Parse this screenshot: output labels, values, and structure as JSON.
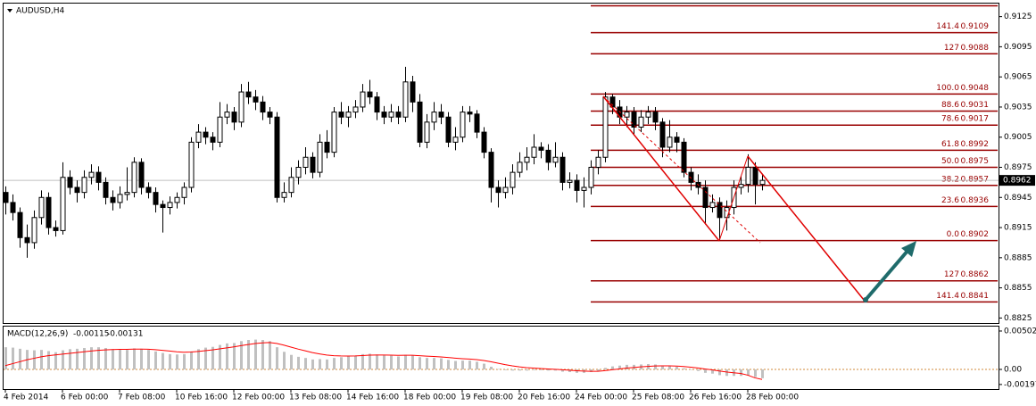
{
  "chart_data": [
    {
      "type": "candlestick",
      "title": "AUDUSD,H4",
      "categories": [
        "4 Feb 2014",
        null,
        null,
        null,
        null,
        null,
        null,
        null,
        "6 Feb 00:00",
        null,
        null,
        null,
        null,
        null,
        null,
        null,
        "7 Feb 08:00",
        null,
        null,
        null,
        null,
        null,
        null,
        null,
        "10 Feb 16:00",
        null,
        null,
        null,
        null,
        null,
        null,
        null,
        "12 Feb 00:00",
        null,
        null,
        null,
        null,
        null,
        null,
        null,
        "13 Feb 08:00",
        null,
        null,
        null,
        null,
        null,
        null,
        null,
        "14 Feb 16:00",
        null,
        null,
        null,
        null,
        null,
        null,
        null,
        "18 Feb 00:00",
        null,
        null,
        null,
        null,
        null,
        null,
        null,
        "19 Feb 08:00",
        null,
        null,
        null,
        null,
        null,
        null,
        null,
        "20 Feb 16:00",
        null,
        null,
        null,
        null,
        null,
        null,
        null,
        "24 Feb 00:00",
        null,
        null,
        null,
        null,
        null,
        null,
        null,
        "25 Feb 08:00",
        null,
        null,
        null,
        null,
        null,
        null,
        null,
        "26 Feb 16:00",
        null,
        null,
        null,
        null,
        null,
        null,
        null,
        "28 Feb 00:00",
        null,
        null
      ],
      "candles": [
        [
          0.895,
          0.8956,
          0.8928,
          0.894
        ],
        [
          0.894,
          0.8948,
          0.8922,
          0.893
        ],
        [
          0.893,
          0.8935,
          0.8895,
          0.8905
        ],
        [
          0.8905,
          0.8918,
          0.8885,
          0.89
        ],
        [
          0.89,
          0.8932,
          0.8894,
          0.8925
        ],
        [
          0.8925,
          0.8952,
          0.8918,
          0.8945
        ],
        [
          0.8945,
          0.895,
          0.8908,
          0.8915
        ],
        [
          0.8915,
          0.8922,
          0.8906,
          0.8912
        ],
        [
          0.8912,
          0.898,
          0.8908,
          0.8965
        ],
        [
          0.8965,
          0.8972,
          0.8948,
          0.8955
        ],
        [
          0.8955,
          0.8962,
          0.894,
          0.895
        ],
        [
          0.895,
          0.8972,
          0.8944,
          0.8965
        ],
        [
          0.8965,
          0.8978,
          0.8958,
          0.897
        ],
        [
          0.897,
          0.8976,
          0.8952,
          0.896
        ],
        [
          0.896,
          0.8965,
          0.8938,
          0.8945
        ],
        [
          0.8945,
          0.8952,
          0.8932,
          0.894
        ],
        [
          0.894,
          0.8956,
          0.8934,
          0.8948
        ],
        [
          0.8948,
          0.8975,
          0.8942,
          0.895
        ],
        [
          0.895,
          0.8985,
          0.8945,
          0.898
        ],
        [
          0.898,
          0.8984,
          0.8948,
          0.8955
        ],
        [
          0.8955,
          0.896,
          0.8944,
          0.895
        ],
        [
          0.895,
          0.8955,
          0.893,
          0.8938
        ],
        [
          0.8938,
          0.8942,
          0.891,
          0.8935
        ],
        [
          0.8935,
          0.8946,
          0.8928,
          0.894
        ],
        [
          0.894,
          0.895,
          0.8934,
          0.8945
        ],
        [
          0.8945,
          0.896,
          0.8938,
          0.8955
        ],
        [
          0.8955,
          0.9005,
          0.895,
          0.9
        ],
        [
          0.9,
          0.9018,
          0.8994,
          0.901
        ],
        [
          0.901,
          0.9015,
          0.8998,
          0.9005
        ],
        [
          0.9005,
          0.901,
          0.8992,
          0.9
        ],
        [
          0.9,
          0.904,
          0.8995,
          0.9025
        ],
        [
          0.9025,
          0.9038,
          0.9018,
          0.903
        ],
        [
          0.903,
          0.9035,
          0.9012,
          0.902
        ],
        [
          0.902,
          0.9058,
          0.9015,
          0.905
        ],
        [
          0.905,
          0.906,
          0.9038,
          0.9045
        ],
        [
          0.9045,
          0.9052,
          0.9032,
          0.904
        ],
        [
          0.904,
          0.9046,
          0.9022,
          0.903
        ],
        [
          0.903,
          0.9035,
          0.9018,
          0.9025
        ],
        [
          0.9025,
          0.903,
          0.894,
          0.8945
        ],
        [
          0.8945,
          0.896,
          0.894,
          0.895
        ],
        [
          0.895,
          0.8975,
          0.8945,
          0.8965
        ],
        [
          0.8965,
          0.8982,
          0.8958,
          0.8975
        ],
        [
          0.8975,
          0.8995,
          0.8968,
          0.8985
        ],
        [
          0.8985,
          0.899,
          0.8964,
          0.897
        ],
        [
          0.897,
          0.9008,
          0.8965,
          0.9
        ],
        [
          0.9,
          0.9012,
          0.8984,
          0.899
        ],
        [
          0.899,
          0.9035,
          0.8985,
          0.903
        ],
        [
          0.903,
          0.904,
          0.9018,
          0.9025
        ],
        [
          0.9025,
          0.9036,
          0.9015,
          0.903
        ],
        [
          0.903,
          0.9042,
          0.9024,
          0.9035
        ],
        [
          0.9035,
          0.9058,
          0.903,
          0.905
        ],
        [
          0.905,
          0.9062,
          0.9038,
          0.9045
        ],
        [
          0.9045,
          0.905,
          0.9022,
          0.903
        ],
        [
          0.903,
          0.9036,
          0.9018,
          0.9025
        ],
        [
          0.9025,
          0.9038,
          0.902,
          0.903
        ],
        [
          0.903,
          0.9036,
          0.9018,
          0.9025
        ],
        [
          0.9025,
          0.9075,
          0.902,
          0.906
        ],
        [
          0.906,
          0.9066,
          0.903,
          0.904
        ],
        [
          0.904,
          0.9048,
          0.8995,
          0.9
        ],
        [
          0.9,
          0.9028,
          0.8994,
          0.902
        ],
        [
          0.902,
          0.904,
          0.9012,
          0.903
        ],
        [
          0.903,
          0.9038,
          0.9018,
          0.9025
        ],
        [
          0.9025,
          0.903,
          0.8995,
          0.9
        ],
        [
          0.9,
          0.9015,
          0.8992,
          0.9005
        ],
        [
          0.9005,
          0.9036,
          0.9,
          0.903
        ],
        [
          0.903,
          0.9036,
          0.902,
          0.9028
        ],
        [
          0.9028,
          0.9032,
          0.9004,
          0.901
        ],
        [
          0.901,
          0.9015,
          0.8984,
          0.899
        ],
        [
          0.899,
          0.8994,
          0.894,
          0.8955
        ],
        [
          0.8955,
          0.8962,
          0.8935,
          0.895
        ],
        [
          0.895,
          0.8965,
          0.8944,
          0.8955
        ],
        [
          0.8955,
          0.8978,
          0.8948,
          0.897
        ],
        [
          0.897,
          0.899,
          0.8965,
          0.898
        ],
        [
          0.898,
          0.8995,
          0.8972,
          0.8985
        ],
        [
          0.8985,
          0.9008,
          0.8978,
          0.8995
        ],
        [
          0.8995,
          0.9,
          0.8984,
          0.8992
        ],
        [
          0.8992,
          0.8998,
          0.8972,
          0.898
        ],
        [
          0.898,
          0.9,
          0.8975,
          0.8985
        ],
        [
          0.8985,
          0.899,
          0.8952,
          0.896
        ],
        [
          0.896,
          0.897,
          0.8954,
          0.8962
        ],
        [
          0.8962,
          0.8968,
          0.894,
          0.8952
        ],
        [
          0.8952,
          0.8965,
          0.8935,
          0.8955
        ],
        [
          0.8955,
          0.8982,
          0.8948,
          0.8975
        ],
        [
          0.8975,
          0.8992,
          0.8968,
          0.8985
        ],
        [
          0.8985,
          0.905,
          0.898,
          0.9045
        ],
        [
          0.9045,
          0.9048,
          0.9028,
          0.9035
        ],
        [
          0.9035,
          0.9042,
          0.9018,
          0.9025
        ],
        [
          0.9025,
          0.9036,
          0.9015,
          0.903
        ],
        [
          0.903,
          0.9035,
          0.9008,
          0.9015
        ],
        [
          0.9015,
          0.9032,
          0.901,
          0.9025
        ],
        [
          0.9025,
          0.9036,
          0.9018,
          0.903
        ],
        [
          0.903,
          0.9035,
          0.9012,
          0.902
        ],
        [
          0.902,
          0.9024,
          0.8985,
          0.8995
        ],
        [
          0.8995,
          0.9022,
          0.899,
          0.9005
        ],
        [
          0.9005,
          0.901,
          0.899,
          0.9
        ],
        [
          0.9,
          0.9004,
          0.8965,
          0.897
        ],
        [
          0.897,
          0.8975,
          0.8952,
          0.896
        ],
        [
          0.896,
          0.8968,
          0.8948,
          0.8955
        ],
        [
          0.8955,
          0.8962,
          0.8918,
          0.8935
        ],
        [
          0.8935,
          0.8948,
          0.893,
          0.894
        ],
        [
          0.894,
          0.8945,
          0.8902,
          0.8925
        ],
        [
          0.8925,
          0.8942,
          0.8912,
          0.8935
        ],
        [
          0.8935,
          0.8962,
          0.8928,
          0.8955
        ],
        [
          0.8955,
          0.8966,
          0.8948,
          0.8958
        ],
        [
          0.8958,
          0.8988,
          0.895,
          0.8975
        ],
        [
          0.8975,
          0.898,
          0.8938,
          0.8958
        ],
        [
          0.8958,
          0.8968,
          0.8952,
          0.8962
        ]
      ],
      "up_color": "#ffffff",
      "down_color": "#000000",
      "ylim": [
        0.882,
        0.9138
      ],
      "yticks": [
        0.9125,
        0.9095,
        0.9065,
        0.9035,
        0.9005,
        0.8975,
        0.8945,
        0.8915,
        0.8885,
        0.8855,
        0.8825
      ],
      "current_price": 0.8962,
      "fib_color": "#990000",
      "fib_levels": [
        {
          "ratio": "141.4",
          "price": 0.9109
        },
        {
          "ratio": "127",
          "price": 0.9088
        },
        {
          "ratio": "100.0",
          "price": 0.9048
        },
        {
          "ratio": "88.6",
          "price": 0.9031
        },
        {
          "ratio": "78.6",
          "price": 0.9017
        },
        {
          "ratio": "61.8",
          "price": 0.8992
        },
        {
          "ratio": "50.0",
          "price": 0.8975
        },
        {
          "ratio": "38.2",
          "price": 0.8957
        },
        {
          "ratio": "23.6",
          "price": 0.8936
        },
        {
          "ratio": "0.0",
          "price": 0.8902
        },
        {
          "ratio": "127",
          "price": 0.8862
        },
        {
          "ratio": "141.4",
          "price": 0.8841
        }
      ]
    },
    {
      "type": "macd",
      "title": "MACD(12,26,9)",
      "histogram": {
        "color": "#c0c0c0",
        "values": [
          0.0029,
          0.00285,
          0.0027,
          0.00255,
          0.0025,
          0.00255,
          0.0024,
          0.00225,
          0.0025,
          0.00265,
          0.0027,
          0.0028,
          0.0029,
          0.0029,
          0.0028,
          0.00265,
          0.0026,
          0.00255,
          0.00275,
          0.0027,
          0.00255,
          0.00235,
          0.00215,
          0.002,
          0.00195,
          0.002,
          0.00235,
          0.00265,
          0.00285,
          0.00295,
          0.0032,
          0.0034,
          0.00345,
          0.0037,
          0.00385,
          0.0039,
          0.00385,
          0.0037,
          0.0029,
          0.0023,
          0.0019,
          0.00165,
          0.0015,
          0.0013,
          0.00135,
          0.0013,
          0.0015,
          0.0016,
          0.0017,
          0.0018,
          0.002,
          0.00205,
          0.00195,
          0.00185,
          0.0018,
          0.0017,
          0.0019,
          0.00185,
          0.0016,
          0.0015,
          0.0015,
          0.00145,
          0.00125,
          0.0011,
          0.00115,
          0.00115,
          0.001,
          0.00075,
          0.00035,
          5e-05,
          -0.0001,
          -0.00015,
          -0.00015,
          -0.00015,
          -0.0001,
          -0.0001,
          -0.00015,
          -0.00015,
          -0.0003,
          -0.00035,
          -0.00045,
          -0.00045,
          -0.00035,
          -0.00025,
          0.0002,
          0.0004,
          0.0005,
          0.0006,
          0.0006,
          0.00065,
          0.0007,
          0.00065,
          0.0005,
          0.00045,
          0.00035,
          0.00015,
          -5e-05,
          -0.0002,
          -0.00045,
          -0.00055,
          -0.00075,
          -0.00085,
          -0.00085,
          -0.00085,
          -0.0008,
          -0.001,
          -0.00115
        ]
      },
      "signal": {
        "color": "#ff0000",
        "values": [
          0.0005,
          0.00075,
          0.001,
          0.00125,
          0.00145,
          0.00165,
          0.0018,
          0.0019,
          0.002,
          0.0021,
          0.0022,
          0.0023,
          0.0024,
          0.0025,
          0.00255,
          0.0026,
          0.00262,
          0.00262,
          0.00265,
          0.00266,
          0.00264,
          0.00258,
          0.0025,
          0.0024,
          0.00231,
          0.00225,
          0.00227,
          0.00235,
          0.00245,
          0.00255,
          0.00268,
          0.00282,
          0.00295,
          0.0031,
          0.00325,
          0.00338,
          0.00347,
          0.00352,
          0.0034,
          0.00318,
          0.00292,
          0.00266,
          0.00243,
          0.0022,
          0.00203,
          0.00188,
          0.0018,
          0.00176,
          0.00175,
          0.00176,
          0.00181,
          0.00186,
          0.00188,
          0.00188,
          0.00187,
          0.00184,
          0.00185,
          0.00185,
          0.0018,
          0.00174,
          0.00169,
          0.00164,
          0.00156,
          0.00147,
          0.0014,
          0.00135,
          0.00128,
          0.00117,
          0.00101,
          0.00082,
          0.00063,
          0.00047,
          0.00034,
          0.00024,
          0.00017,
          0.00011,
          6e-05,
          2e-05,
          -4e-05,
          -0.0001,
          -0.00017,
          -0.00022,
          -0.00025,
          -0.00025,
          -0.00016,
          -5e-05,
          6e-05,
          0.00017,
          0.00025,
          0.00033,
          0.0004,
          0.00045,
          0.00046,
          0.00046,
          0.00044,
          0.00038,
          0.00029,
          0.00019,
          6e-05,
          -6e-05,
          -0.0002,
          -0.00033,
          -0.00044,
          -0.00052,
          -0.00075,
          -0.0011,
          -0.00131
        ]
      },
      "ylim": [
        -0.00245,
        0.0056
      ],
      "yticks": [
        0.00502,
        {
          "value": 0,
          "label": "0.00"
        },
        -0.00197
      ]
    }
  ]
}
